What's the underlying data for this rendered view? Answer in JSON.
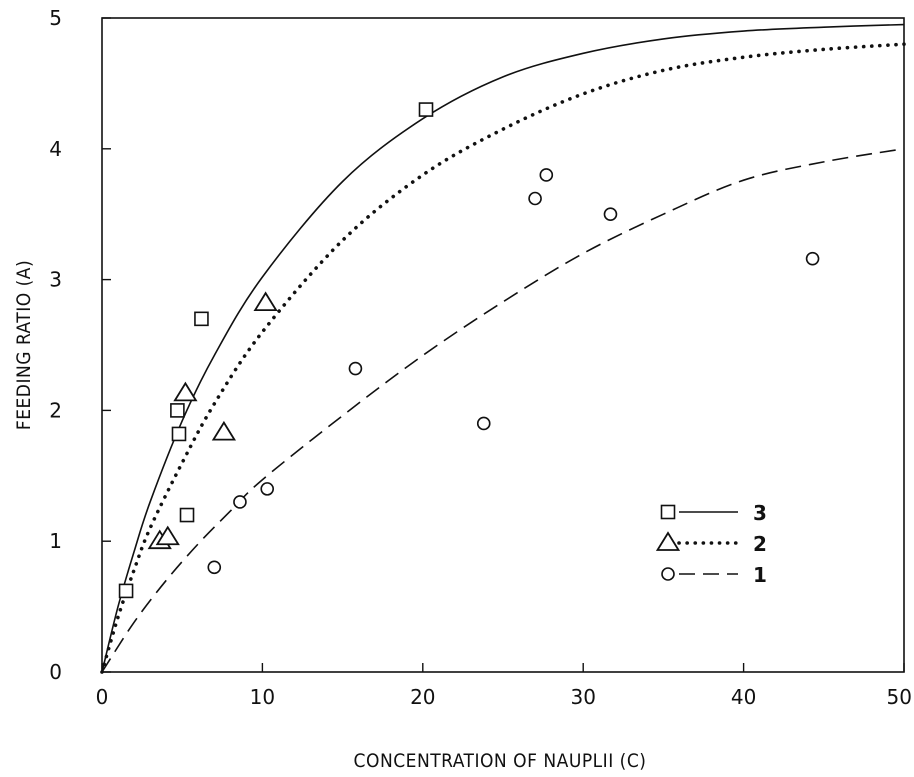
{
  "chart_data": {
    "type": "scatter",
    "title": "",
    "xlabel": "CONCENTRATION OF NAUPLII (C)",
    "ylabel": "FEEDING RATIO (A)",
    "xlim": [
      0,
      50
    ],
    "ylim": [
      0,
      5
    ],
    "x_ticks": [
      0,
      10,
      20,
      30,
      40,
      50
    ],
    "y_ticks": [
      0,
      1,
      2,
      3,
      4,
      5
    ],
    "grid": false,
    "legend_position": "right-middle",
    "series": [
      {
        "name": "3",
        "marker": "square",
        "line_style": "solid",
        "points": [
          {
            "x": 1.5,
            "y": 0.62
          },
          {
            "x": 4.7,
            "y": 2.0
          },
          {
            "x": 4.8,
            "y": 1.82
          },
          {
            "x": 5.3,
            "y": 1.2
          },
          {
            "x": 6.2,
            "y": 2.7
          },
          {
            "x": 20.2,
            "y": 4.3
          }
        ],
        "curve": [
          [
            0,
            0
          ],
          [
            1,
            0.5
          ],
          [
            2,
            0.92
          ],
          [
            3,
            1.3
          ],
          [
            5,
            1.92
          ],
          [
            7,
            2.42
          ],
          [
            10,
            3.02
          ],
          [
            15,
            3.75
          ],
          [
            20,
            4.23
          ],
          [
            25,
            4.55
          ],
          [
            30,
            4.73
          ],
          [
            35,
            4.84
          ],
          [
            40,
            4.9
          ],
          [
            45,
            4.93
          ],
          [
            50,
            4.95
          ]
        ]
      },
      {
        "name": "2",
        "marker": "triangle",
        "line_style": "dotted",
        "points": [
          {
            "x": 3.6,
            "y": 1.0
          },
          {
            "x": 4.1,
            "y": 1.03
          },
          {
            "x": 5.2,
            "y": 2.13
          },
          {
            "x": 7.6,
            "y": 1.83
          },
          {
            "x": 10.2,
            "y": 2.82
          }
        ],
        "curve": [
          [
            0,
            0
          ],
          [
            1,
            0.42
          ],
          [
            2,
            0.78
          ],
          [
            3,
            1.1
          ],
          [
            5,
            1.6
          ],
          [
            7,
            2.05
          ],
          [
            10,
            2.6
          ],
          [
            15,
            3.3
          ],
          [
            20,
            3.8
          ],
          [
            25,
            4.15
          ],
          [
            30,
            4.42
          ],
          [
            35,
            4.6
          ],
          [
            40,
            4.7
          ],
          [
            45,
            4.76
          ],
          [
            50,
            4.8
          ]
        ]
      },
      {
        "name": "1",
        "marker": "circle",
        "line_style": "dashed",
        "points": [
          {
            "x": 7.0,
            "y": 0.8
          },
          {
            "x": 8.6,
            "y": 1.3
          },
          {
            "x": 10.3,
            "y": 1.4
          },
          {
            "x": 15.8,
            "y": 2.32
          },
          {
            "x": 23.8,
            "y": 1.9
          },
          {
            "x": 27.0,
            "y": 3.62
          },
          {
            "x": 27.7,
            "y": 3.8
          },
          {
            "x": 31.7,
            "y": 3.5
          },
          {
            "x": 44.3,
            "y": 3.16
          }
        ],
        "curve": [
          [
            0,
            0
          ],
          [
            2,
            0.38
          ],
          [
            4,
            0.7
          ],
          [
            6,
            0.98
          ],
          [
            8,
            1.23
          ],
          [
            10,
            1.47
          ],
          [
            15,
            1.96
          ],
          [
            20,
            2.42
          ],
          [
            25,
            2.83
          ],
          [
            30,
            3.2
          ],
          [
            35,
            3.5
          ],
          [
            40,
            3.76
          ],
          [
            45,
            3.9
          ],
          [
            50,
            4.0
          ]
        ]
      }
    ]
  }
}
